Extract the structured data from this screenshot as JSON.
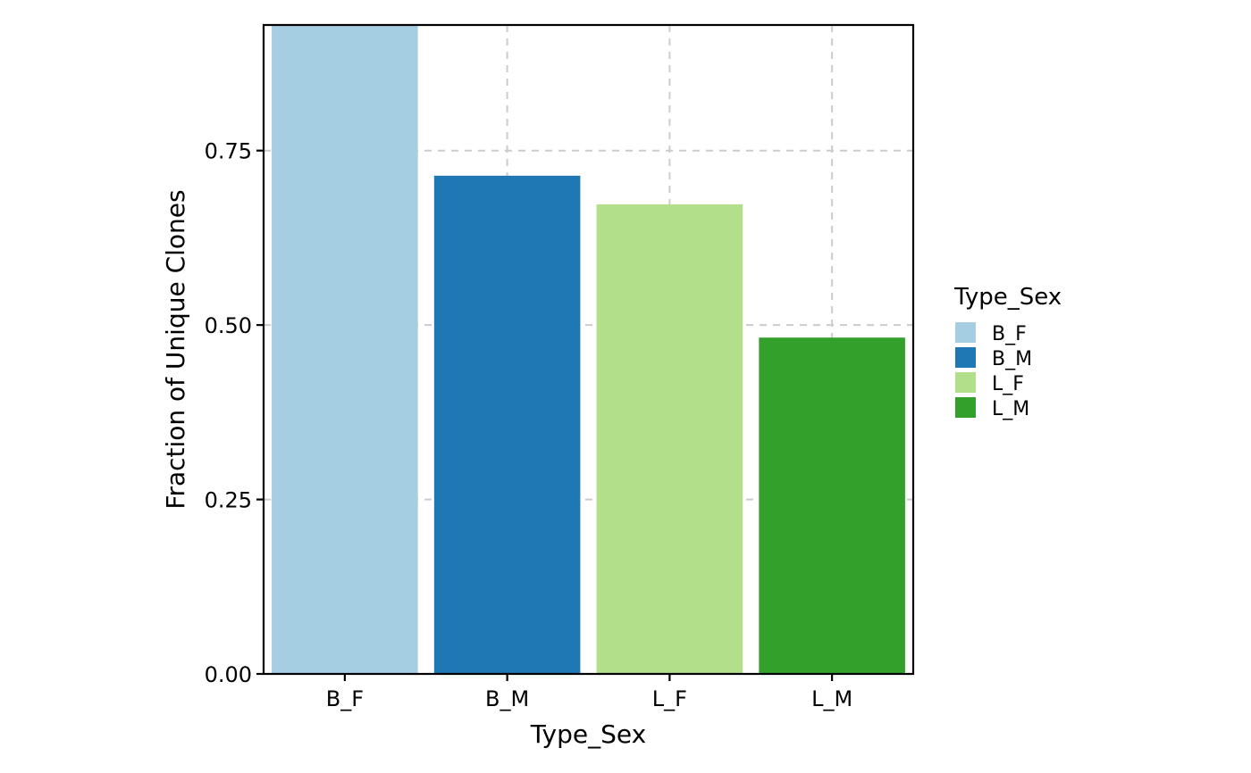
{
  "chart_data": {
    "type": "bar",
    "title": "",
    "xlabel": "Type_Sex",
    "ylabel": "Fraction of Unique Clones",
    "categories": [
      "B_F",
      "B_M",
      "L_F",
      "L_M"
    ],
    "values": [
      0.93,
      0.714,
      0.673,
      0.482
    ],
    "colors": [
      "#A6CEE3",
      "#1F78B4",
      "#B2DF8A",
      "#33A02C"
    ],
    "ylim": [
      0,
      0.93
    ],
    "yticks": [
      0,
      0.25,
      0.5,
      0.75
    ],
    "ytick_labels": [
      "0.00",
      "0.25",
      "0.50",
      "0.75"
    ],
    "grid": true,
    "legend": {
      "title": "Type_Sex",
      "position": "right",
      "entries": [
        "B_F",
        "B_M",
        "L_F",
        "L_M"
      ]
    }
  }
}
